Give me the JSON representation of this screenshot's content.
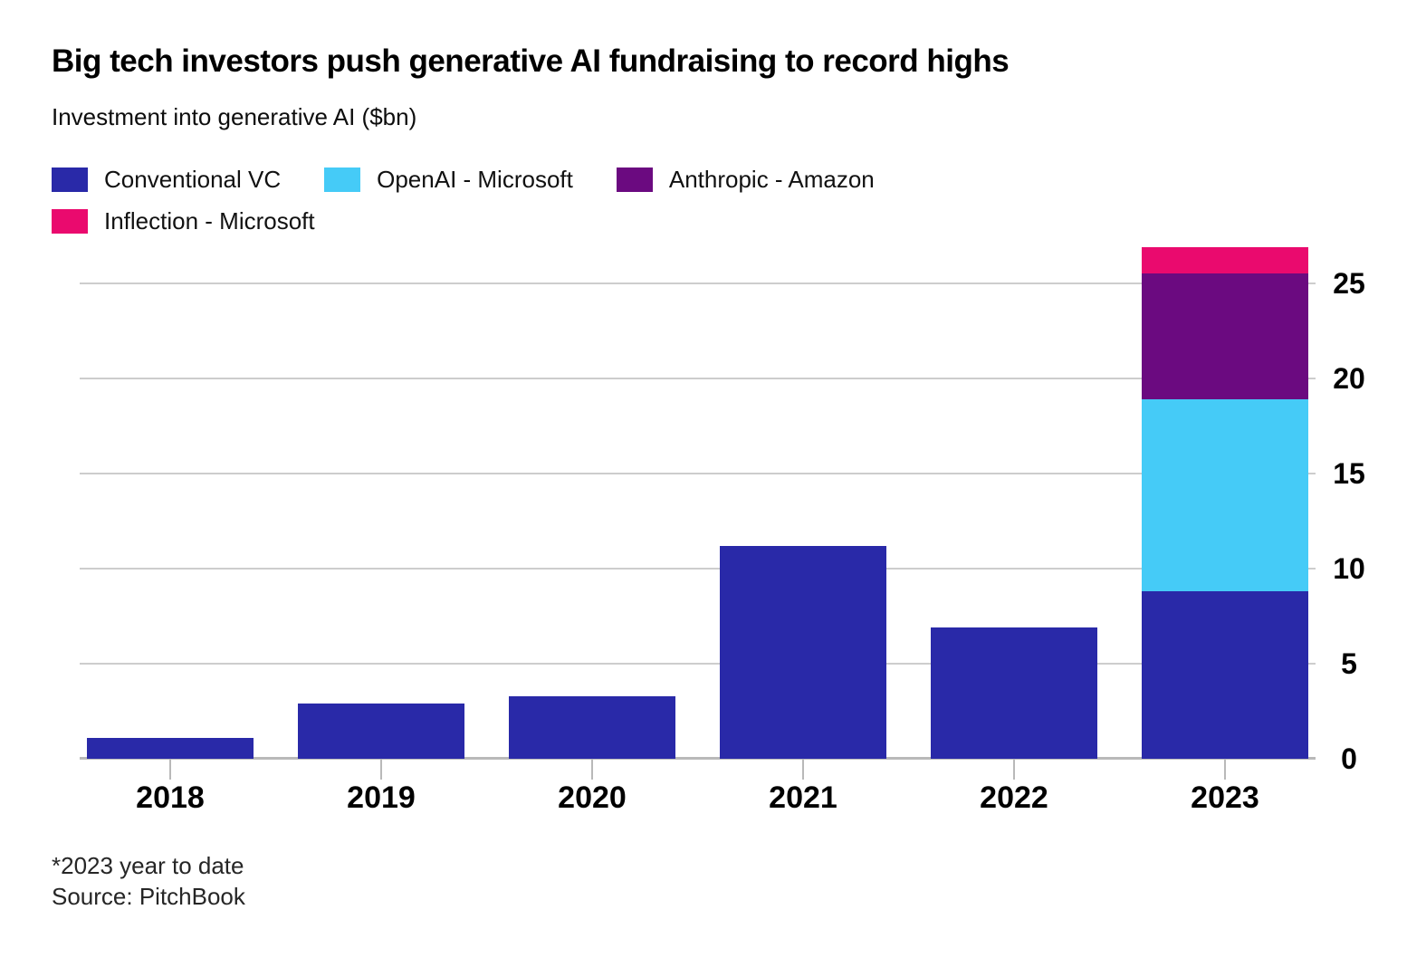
{
  "header": {
    "title": "Big tech investors push generative AI fundraising to record highs",
    "subtitle": "Investment into generative AI ($bn)"
  },
  "chart_data": {
    "type": "bar",
    "stacked": true,
    "title": "Big tech investors push generative AI fundraising to record highs",
    "ylabel": "Investment into generative AI ($bn)",
    "categories": [
      "2018",
      "2019",
      "2020",
      "2021",
      "2022",
      "2023"
    ],
    "series": [
      {
        "name": "Conventional VC",
        "color": "#2929a8",
        "values": [
          1.1,
          2.9,
          3.3,
          11.2,
          6.9,
          8.8
        ]
      },
      {
        "name": "OpenAI - Microsoft",
        "color": "#45cbf7",
        "values": [
          0,
          0,
          0,
          0,
          0,
          10.1
        ]
      },
      {
        "name": "Anthropic - Amazon",
        "color": "#6b0a80",
        "values": [
          0,
          0,
          0,
          0,
          0,
          6.6
        ]
      },
      {
        "name": "Inflection - Microsoft",
        "color": "#ea0a6e",
        "values": [
          0,
          0,
          0,
          0,
          0,
          1.4
        ]
      }
    ],
    "totals_2023": 26.9,
    "yticks": [
      0,
      5,
      10,
      15,
      20,
      25
    ],
    "ylim": [
      0,
      27
    ],
    "grid": "horizontal",
    "legend_position": "top",
    "ytick_side": "right"
  },
  "footer": {
    "footnote": "*2023 year to date",
    "source": "Source: PitchBook"
  }
}
